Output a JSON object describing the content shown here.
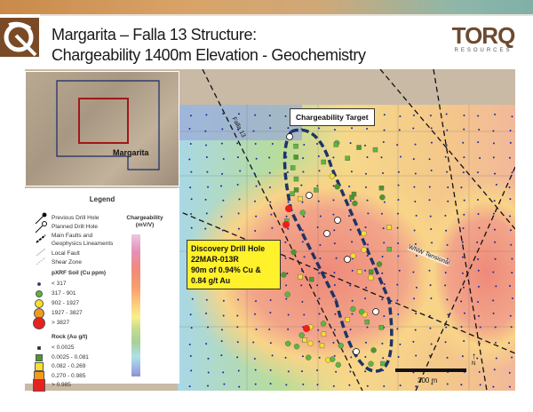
{
  "header": {
    "title_line1": "Margarita – Falla 13 Structure:",
    "title_line2": "Chargeability 1400m Elevation - Geochemistry",
    "brand": "TORQ",
    "brand_sub": "RESOURCES"
  },
  "inset": {
    "label": "Margarita"
  },
  "map": {
    "fault_label": "Falla 13",
    "lineament_label": "WNW Tensional",
    "target_callout": "Chargeability Target",
    "discovery": {
      "line1": "Discovery Drill Hole",
      "line2": "22MAR-013R",
      "line3": "90m of 0.94% Cu &",
      "line4": "0.84 g/t Au"
    },
    "scale_label": "300 m",
    "north_icon": "north-arrow-icon"
  },
  "legend": {
    "title": "Legend",
    "lines": [
      "Previous Drill Hole",
      "Planned Drill Hole",
      "Main Faults and",
      "Geophysics Lineaments",
      "Local Fault",
      "Shear Zone"
    ],
    "soil_title": "pXRF Soil (Cu ppm)",
    "soil": [
      {
        "label": "< 317",
        "color": "#1a2a9a"
      },
      {
        "label": "317 - 901",
        "color": "#5cb83a"
      },
      {
        "label": "902 - 1927",
        "color": "#f5e030"
      },
      {
        "label": "1927 - 3827",
        "color": "#f29a1e"
      },
      {
        "label": "> 3827",
        "color": "#e8201e"
      }
    ],
    "rock_title": "Rock (Au g/t)",
    "rock": [
      {
        "label": "< 0.0025",
        "color": "#222222"
      },
      {
        "label": "0.0025 - 0.081",
        "color": "#4a9a2a"
      },
      {
        "label": "0.082 - 0.269",
        "color": "#f5e030"
      },
      {
        "label": "0.270 - 0.985",
        "color": "#f29a1e"
      },
      {
        "label": "> 0.985",
        "color": "#e8201e"
      }
    ],
    "colorbar_title": "Chargeability",
    "colorbar_units": "(mV/V)"
  }
}
